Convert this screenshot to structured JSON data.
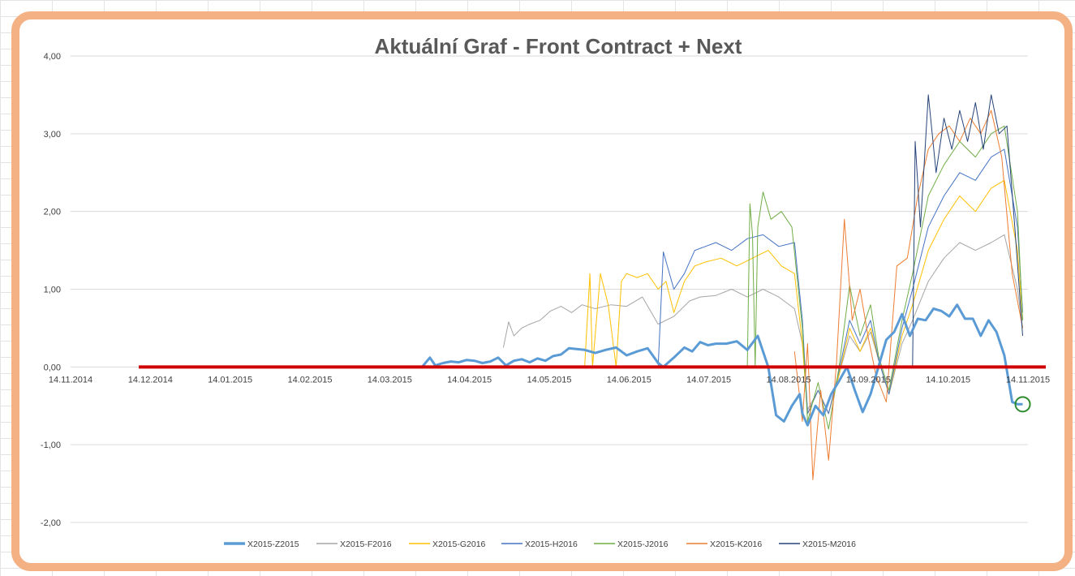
{
  "chart_data": {
    "type": "line",
    "title": "Aktuální Graf - Front Contract + Next",
    "xlabel": "",
    "ylabel": "",
    "ylim": [
      -2,
      4
    ],
    "x_range": [
      "2014-11-14",
      "2015-11-14"
    ],
    "x_tick_labels": [
      "14.11.2014",
      "14.12.2014",
      "14.01.2015",
      "14.02.2015",
      "14.03.2015",
      "14.04.2015",
      "14.05.2015",
      "14.06.2015",
      "14.07.2015",
      "14.08.2015",
      "14.09.2015",
      "14.10.2015",
      "14.11.2015"
    ],
    "y_tick_labels": [
      "4,00",
      "3,00",
      "2,00",
      "1,00",
      "0,00",
      "-1,00",
      "-2,00"
    ],
    "grid": "horizontal",
    "legend_position": "bottom",
    "zero_line_color": "#d00000",
    "annotation": "green circle around last point of X2015-Z2015",
    "series": [
      {
        "name": "X2015-Z2015",
        "color": "#5b9bd5",
        "width": 3,
        "x": [
          "2014-12-10",
          "2015-03-28",
          "2015-03-31",
          "2015-04-02",
          "2015-04-05",
          "2015-04-08",
          "2015-04-11",
          "2015-04-14",
          "2015-04-17",
          "2015-04-20",
          "2015-04-23",
          "2015-04-26",
          "2015-04-29",
          "2015-05-02",
          "2015-05-05",
          "2015-05-08",
          "2015-05-11",
          "2015-05-14",
          "2015-05-17",
          "2015-05-20",
          "2015-05-23",
          "2015-05-26",
          "2015-05-29",
          "2015-06-02",
          "2015-06-06",
          "2015-06-10",
          "2015-06-14",
          "2015-06-18",
          "2015-06-22",
          "2015-06-26",
          "2015-06-28",
          "2015-07-02",
          "2015-07-06",
          "2015-07-09",
          "2015-07-12",
          "2015-07-15",
          "2015-07-18",
          "2015-07-22",
          "2015-07-26",
          "2015-07-30",
          "2015-08-03",
          "2015-08-07",
          "2015-08-10",
          "2015-08-13",
          "2015-08-16",
          "2015-08-19",
          "2015-08-20",
          "2015-08-22",
          "2015-08-25",
          "2015-08-28",
          "2015-08-31",
          "2015-09-03",
          "2015-09-06",
          "2015-09-09",
          "2015-09-12",
          "2015-09-15",
          "2015-09-18",
          "2015-09-21",
          "2015-09-24",
          "2015-09-27",
          "2015-09-30",
          "2015-10-03",
          "2015-10-06",
          "2015-10-09",
          "2015-10-12",
          "2015-10-15",
          "2015-10-18",
          "2015-10-21",
          "2015-10-24",
          "2015-10-27",
          "2015-10-30",
          "2015-11-02",
          "2015-11-05",
          "2015-11-08",
          "2015-11-10",
          "2015-11-12"
        ],
        "values": [
          0.0,
          0.0,
          0.12,
          0.02,
          0.05,
          0.07,
          0.06,
          0.09,
          0.08,
          0.05,
          0.07,
          0.12,
          0.02,
          0.08,
          0.1,
          0.06,
          0.11,
          0.08,
          0.14,
          0.16,
          0.24,
          0.23,
          0.22,
          0.18,
          0.22,
          0.25,
          0.15,
          0.2,
          0.24,
          0.05,
          0.0,
          0.12,
          0.25,
          0.2,
          0.32,
          0.28,
          0.3,
          0.3,
          0.33,
          0.22,
          0.4,
          0.0,
          -0.62,
          -0.7,
          -0.5,
          -0.35,
          -0.6,
          -0.75,
          -0.5,
          -0.62,
          -0.35,
          -0.18,
          0.0,
          -0.3,
          -0.58,
          -0.35,
          0.0,
          0.35,
          0.45,
          0.68,
          0.4,
          0.62,
          0.6,
          0.75,
          0.72,
          0.65,
          0.8,
          0.62,
          0.62,
          0.4,
          0.6,
          0.45,
          0.15,
          -0.45,
          -0.48,
          -0.48
        ]
      },
      {
        "name": "X2015-F2016",
        "color": "#a5a5a5",
        "width": 1,
        "x": [
          "2015-04-28",
          "2015-04-30",
          "2015-05-02",
          "2015-05-05",
          "2015-05-08",
          "2015-05-12",
          "2015-05-16",
          "2015-05-20",
          "2015-05-24",
          "2015-05-28",
          "2015-06-02",
          "2015-06-08",
          "2015-06-14",
          "2015-06-20",
          "2015-06-26",
          "2015-07-02",
          "2015-07-08",
          "2015-07-12",
          "2015-07-18",
          "2015-07-24",
          "2015-07-30",
          "2015-08-05",
          "2015-08-11",
          "2015-08-17",
          "2015-08-20",
          "2015-08-22",
          "2015-08-26",
          "2015-08-30",
          "2015-09-03",
          "2015-09-07",
          "2015-09-11",
          "2015-09-15",
          "2015-09-18",
          "2015-09-22",
          "2015-09-27",
          "2015-10-01",
          "2015-10-07",
          "2015-10-13",
          "2015-10-19",
          "2015-10-25",
          "2015-10-31",
          "2015-11-05",
          "2015-11-10",
          "2015-11-12"
        ],
        "values": [
          0.25,
          0.58,
          0.4,
          0.5,
          0.55,
          0.6,
          0.72,
          0.78,
          0.7,
          0.8,
          0.75,
          0.8,
          0.78,
          0.9,
          0.55,
          0.65,
          0.85,
          0.9,
          0.92,
          1.0,
          0.9,
          1.0,
          0.9,
          0.75,
          0.3,
          -0.55,
          -0.3,
          -0.6,
          -0.1,
          0.4,
          0.2,
          0.45,
          0.1,
          -0.35,
          0.3,
          0.6,
          1.1,
          1.4,
          1.6,
          1.5,
          1.6,
          1.7,
          1.0,
          0.5
        ]
      },
      {
        "name": "X2015-G2016",
        "color": "#ffc000",
        "width": 1,
        "x": [
          "2015-05-29",
          "2015-05-31",
          "2015-06-01",
          "2015-06-04",
          "2015-06-07",
          "2015-06-10",
          "2015-06-12",
          "2015-06-14",
          "2015-06-18",
          "2015-06-22",
          "2015-06-26",
          "2015-06-29",
          "2015-07-02",
          "2015-07-06",
          "2015-07-10",
          "2015-07-14",
          "2015-07-20",
          "2015-07-26",
          "2015-08-01",
          "2015-08-07",
          "2015-08-12",
          "2015-08-17",
          "2015-08-20",
          "2015-08-22",
          "2015-08-26",
          "2015-08-30",
          "2015-09-03",
          "2015-09-07",
          "2015-09-11",
          "2015-09-15",
          "2015-09-18",
          "2015-09-22",
          "2015-09-27",
          "2015-10-01",
          "2015-10-07",
          "2015-10-13",
          "2015-10-19",
          "2015-10-25",
          "2015-10-31",
          "2015-11-05",
          "2015-11-10",
          "2015-11-12"
        ],
        "values": [
          0.0,
          1.2,
          0.0,
          1.2,
          0.8,
          0.0,
          1.1,
          1.2,
          1.15,
          1.2,
          1.0,
          1.1,
          0.7,
          1.1,
          1.3,
          1.35,
          1.4,
          1.3,
          1.4,
          1.5,
          1.3,
          1.2,
          0.3,
          -0.6,
          -0.3,
          -0.6,
          -0.1,
          0.5,
          0.2,
          0.5,
          0.1,
          -0.35,
          0.4,
          0.8,
          1.5,
          1.9,
          2.2,
          2.0,
          2.3,
          2.4,
          1.5,
          0.6
        ]
      },
      {
        "name": "X2015-H2016",
        "color": "#4472c4",
        "width": 1,
        "x": [
          "2015-06-26",
          "2015-06-28",
          "2015-07-02",
          "2015-07-06",
          "2015-07-10",
          "2015-07-14",
          "2015-07-18",
          "2015-07-24",
          "2015-07-30",
          "2015-08-05",
          "2015-08-11",
          "2015-08-17",
          "2015-08-20",
          "2015-08-22",
          "2015-08-26",
          "2015-08-30",
          "2015-09-03",
          "2015-09-07",
          "2015-09-11",
          "2015-09-15",
          "2015-09-18",
          "2015-09-22",
          "2015-09-27",
          "2015-10-01",
          "2015-10-07",
          "2015-10-13",
          "2015-10-19",
          "2015-10-25",
          "2015-10-31",
          "2015-11-05",
          "2015-11-10",
          "2015-11-12"
        ],
        "values": [
          0.0,
          1.48,
          1.0,
          1.2,
          1.5,
          1.55,
          1.6,
          1.5,
          1.65,
          1.7,
          1.55,
          1.6,
          0.6,
          -0.6,
          -0.3,
          -0.6,
          -0.05,
          0.6,
          0.3,
          0.6,
          0.1,
          -0.35,
          0.5,
          1.0,
          1.8,
          2.2,
          2.5,
          2.4,
          2.7,
          2.8,
          1.8,
          0.7
        ]
      },
      {
        "name": "X2015-J2016",
        "color": "#70ad47",
        "width": 1,
        "x": [
          "2015-07-30",
          "2015-07-31",
          "2015-08-01",
          "2015-08-02",
          "2015-08-03",
          "2015-08-05",
          "2015-08-08",
          "2015-08-12",
          "2015-08-16",
          "2015-08-20",
          "2015-08-22",
          "2015-08-26",
          "2015-08-30",
          "2015-09-03",
          "2015-09-07",
          "2015-09-11",
          "2015-09-15",
          "2015-09-18",
          "2015-09-22",
          "2015-09-27",
          "2015-10-01",
          "2015-10-07",
          "2015-10-13",
          "2015-10-19",
          "2015-10-25",
          "2015-10-31",
          "2015-11-05",
          "2015-11-10",
          "2015-11-12"
        ],
        "values": [
          0.0,
          2.1,
          1.7,
          0.0,
          1.8,
          2.25,
          1.9,
          2.0,
          1.8,
          0.5,
          -0.7,
          -0.2,
          -0.8,
          0.0,
          1.05,
          0.4,
          0.8,
          0.15,
          -0.3,
          0.6,
          1.2,
          2.2,
          2.6,
          2.9,
          2.7,
          3.0,
          3.1,
          2.0,
          0.6
        ]
      },
      {
        "name": "X2015-K2016",
        "color": "#ed7d31",
        "width": 1,
        "x": [
          "2015-08-17",
          "2015-08-20",
          "2015-08-22",
          "2015-08-24",
          "2015-08-27",
          "2015-08-30",
          "2015-09-02",
          "2015-09-05",
          "2015-09-08",
          "2015-09-11",
          "2015-09-14",
          "2015-09-17",
          "2015-09-21",
          "2015-09-25",
          "2015-09-29",
          "2015-10-03",
          "2015-10-07",
          "2015-10-11",
          "2015-10-15",
          "2015-10-19",
          "2015-10-23",
          "2015-10-27",
          "2015-10-31",
          "2015-11-04",
          "2015-11-08",
          "2015-11-12"
        ],
        "values": [
          0.2,
          -0.7,
          0.3,
          -1.45,
          -0.3,
          -1.2,
          0.05,
          1.9,
          0.6,
          1.0,
          0.4,
          -0.1,
          -0.45,
          1.3,
          1.4,
          2.2,
          2.8,
          3.0,
          3.1,
          2.9,
          3.2,
          3.0,
          3.3,
          2.7,
          1.2,
          0.5
        ]
      },
      {
        "name": "X2015-M2016",
        "color": "#264478",
        "width": 1,
        "x": [
          "2015-10-01",
          "2015-10-02",
          "2015-10-04",
          "2015-10-07",
          "2015-10-10",
          "2015-10-13",
          "2015-10-16",
          "2015-10-19",
          "2015-10-22",
          "2015-10-25",
          "2015-10-28",
          "2015-10-31",
          "2015-11-03",
          "2015-11-06",
          "2015-11-09",
          "2015-11-12"
        ],
        "values": [
          0.0,
          2.9,
          1.8,
          3.5,
          2.5,
          3.2,
          2.8,
          3.3,
          2.9,
          3.4,
          2.8,
          3.5,
          3.0,
          3.1,
          1.8,
          0.4
        ]
      }
    ]
  }
}
